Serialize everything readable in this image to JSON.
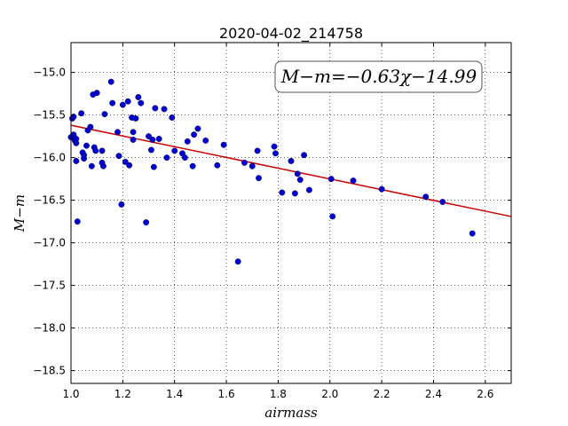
{
  "chart_data": {
    "type": "scatter",
    "title": "2020-04-02_214758",
    "xlabel": "airmass",
    "ylabel": "M−m",
    "xlim": [
      1.0,
      2.7
    ],
    "ylim": [
      -18.65,
      -14.65
    ],
    "y_inverted": true,
    "grid": true,
    "x_ticks": [
      1.0,
      1.2,
      1.4,
      1.6,
      1.8,
      2.0,
      2.2,
      2.4,
      2.6
    ],
    "x_tick_labels": [
      "1.0",
      "1.2",
      "1.4",
      "1.6",
      "1.8",
      "2.0",
      "2.2",
      "2.4",
      "2.6"
    ],
    "y_ticks": [
      -15.0,
      -15.5,
      -16.0,
      -16.5,
      -17.0,
      -17.5,
      -18.0,
      -18.5
    ],
    "y_tick_labels": [
      "−15.0",
      "−15.5",
      "−16.0",
      "−16.5",
      "−17.0",
      "−17.5",
      "−18.0",
      "−18.5"
    ],
    "annotation": "M−m=−0.63χ−14.99",
    "annotation_placement": "top-right",
    "fit_line": {
      "slope": -0.63,
      "intercept": -14.99,
      "color": "#cc0000"
    },
    "point_color": "#0000cc",
    "points": [
      [
        1.0,
        -15.76
      ],
      [
        1.005,
        -15.54
      ],
      [
        1.01,
        -15.73
      ],
      [
        1.01,
        -15.52
      ],
      [
        1.015,
        -15.8
      ],
      [
        1.02,
        -15.78
      ],
      [
        1.02,
        -15.83
      ],
      [
        1.02,
        -16.04
      ],
      [
        1.025,
        -16.75
      ],
      [
        1.04,
        -15.48
      ],
      [
        1.045,
        -15.94
      ],
      [
        1.05,
        -15.97
      ],
      [
        1.05,
        -16.01
      ],
      [
        1.06,
        -15.86
      ],
      [
        1.065,
        -15.68
      ],
      [
        1.075,
        -15.64
      ],
      [
        1.08,
        -16.1
      ],
      [
        1.085,
        -15.26
      ],
      [
        1.09,
        -15.88
      ],
      [
        1.095,
        -15.92
      ],
      [
        1.1,
        -15.24
      ],
      [
        1.12,
        -15.92
      ],
      [
        1.12,
        -16.06
      ],
      [
        1.125,
        -16.1
      ],
      [
        1.13,
        -15.49
      ],
      [
        1.155,
        -15.11
      ],
      [
        1.16,
        -15.36
      ],
      [
        1.18,
        -15.7
      ],
      [
        1.185,
        -15.98
      ],
      [
        1.195,
        -16.55
      ],
      [
        1.2,
        -15.38
      ],
      [
        1.21,
        -16.05
      ],
      [
        1.22,
        -15.34
      ],
      [
        1.225,
        -16.09
      ],
      [
        1.235,
        -15.53
      ],
      [
        1.24,
        -15.7
      ],
      [
        1.24,
        -15.79
      ],
      [
        1.25,
        -15.54
      ],
      [
        1.26,
        -15.29
      ],
      [
        1.27,
        -15.36
      ],
      [
        1.29,
        -16.76
      ],
      [
        1.3,
        -15.75
      ],
      [
        1.31,
        -15.91
      ],
      [
        1.315,
        -15.79
      ],
      [
        1.32,
        -16.11
      ],
      [
        1.325,
        -15.42
      ],
      [
        1.34,
        -15.78
      ],
      [
        1.36,
        -15.43
      ],
      [
        1.37,
        -16.0
      ],
      [
        1.39,
        -15.53
      ],
      [
        1.4,
        -15.92
      ],
      [
        1.43,
        -15.95
      ],
      [
        1.44,
        -16.0
      ],
      [
        1.45,
        -15.81
      ],
      [
        1.47,
        -16.1
      ],
      [
        1.475,
        -15.73
      ],
      [
        1.49,
        -15.66
      ],
      [
        1.52,
        -15.8
      ],
      [
        1.565,
        -16.09
      ],
      [
        1.59,
        -15.85
      ],
      [
        1.645,
        -17.22
      ],
      [
        1.67,
        -16.06
      ],
      [
        1.7,
        -16.1
      ],
      [
        1.72,
        -15.92
      ],
      [
        1.725,
        -16.24
      ],
      [
        1.785,
        -15.87
      ],
      [
        1.79,
        -15.95
      ],
      [
        1.815,
        -16.41
      ],
      [
        1.85,
        -16.04
      ],
      [
        1.865,
        -16.42
      ],
      [
        1.875,
        -16.19
      ],
      [
        1.885,
        -16.26
      ],
      [
        1.9,
        -15.97
      ],
      [
        1.92,
        -16.38
      ],
      [
        2.005,
        -16.25
      ],
      [
        2.01,
        -16.69
      ],
      [
        2.09,
        -16.27
      ],
      [
        2.2,
        -16.37
      ],
      [
        2.37,
        -16.46
      ],
      [
        2.435,
        -16.52
      ],
      [
        2.55,
        -16.89
      ]
    ]
  }
}
